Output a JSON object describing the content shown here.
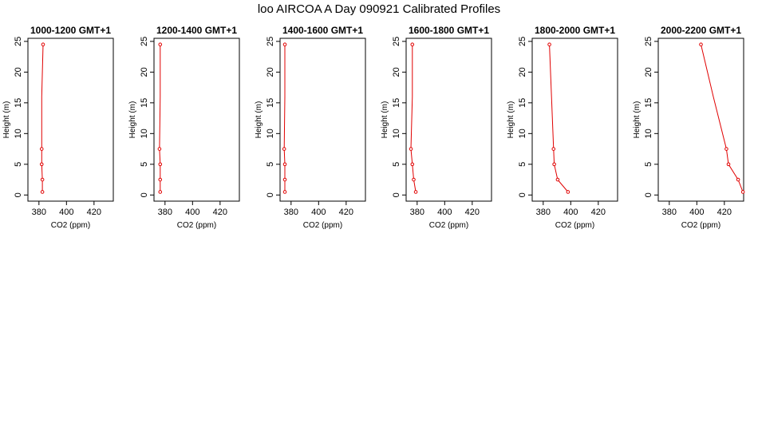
{
  "title": "loo AIRCOA A  Day 090921  Calibrated Profiles",
  "chart_data": [
    {
      "type": "line",
      "title": "1000-1200 GMT+1",
      "xlabel": "CO2 (ppm)",
      "ylabel": "Height (m)",
      "xlim": [
        372,
        434
      ],
      "ylim": [
        -1,
        25.5
      ],
      "xticks": [
        380,
        400,
        420
      ],
      "yticks": [
        0,
        5,
        10,
        15,
        20,
        25
      ],
      "line_color": "#e00000",
      "series": [
        {
          "x": [
            382.5,
            382.5,
            382,
            382,
            382,
            383
          ],
          "y": [
            0.5,
            2.5,
            5,
            7.5,
            16,
            24.5
          ]
        }
      ]
    },
    {
      "type": "line",
      "title": "1200-1400 GMT+1",
      "xlabel": "CO2 (ppm)",
      "ylabel": "Height (m)",
      "xlim": [
        372,
        434
      ],
      "ylim": [
        -1,
        25.5
      ],
      "xticks": [
        380,
        400,
        420
      ],
      "yticks": [
        0,
        5,
        10,
        15,
        20,
        25
      ],
      "line_color": "#e00000",
      "series": [
        {
          "x": [
            376.5,
            376.5,
            376.5,
            376,
            376.5,
            376.5
          ],
          "y": [
            0.5,
            2.5,
            5,
            7.5,
            16,
            24.5
          ]
        }
      ]
    },
    {
      "type": "line",
      "title": "1400-1600 GMT+1",
      "xlabel": "CO2 (ppm)",
      "ylabel": "Height (m)",
      "xlim": [
        372,
        434
      ],
      "ylim": [
        -1,
        25.5
      ],
      "xticks": [
        380,
        400,
        420
      ],
      "yticks": [
        0,
        5,
        10,
        15,
        20,
        25
      ],
      "line_color": "#e00000",
      "series": [
        {
          "x": [
            375.5,
            375.5,
            375.5,
            375,
            375.5,
            375.5
          ],
          "y": [
            0.5,
            2.5,
            5,
            7.5,
            16,
            24.5
          ]
        }
      ]
    },
    {
      "type": "line",
      "title": "1600-1800 GMT+1",
      "xlabel": "CO2 (ppm)",
      "ylabel": "Height (m)",
      "xlim": [
        372,
        434
      ],
      "ylim": [
        -1,
        25.5
      ],
      "xticks": [
        380,
        400,
        420
      ],
      "yticks": [
        0,
        5,
        10,
        15,
        20,
        25
      ],
      "line_color": "#e00000",
      "series": [
        {
          "x": [
            379,
            377.5,
            376.5,
            375.5,
            376.5,
            376.5
          ],
          "y": [
            0.5,
            2.5,
            5,
            7.5,
            16,
            24.5
          ]
        }
      ]
    },
    {
      "type": "line",
      "title": "1800-2000 GMT+1",
      "xlabel": "CO2 (ppm)",
      "ylabel": "Height (m)",
      "xlim": [
        372,
        434
      ],
      "ylim": [
        -1,
        25.5
      ],
      "xticks": [
        380,
        400,
        420
      ],
      "yticks": [
        0,
        5,
        10,
        15,
        20,
        25
      ],
      "line_color": "#e00000",
      "series": [
        {
          "x": [
            398,
            390.5,
            388,
            387.5,
            386,
            384.5
          ],
          "y": [
            0.5,
            2.5,
            5,
            7.5,
            16,
            24.5
          ]
        }
      ]
    },
    {
      "type": "line",
      "title": "2000-2200 GMT+1",
      "xlabel": "CO2 (ppm)",
      "ylabel": "Height (m)",
      "xlim": [
        372,
        434
      ],
      "ylim": [
        -1,
        25.5
      ],
      "xticks": [
        380,
        400,
        420
      ],
      "yticks": [
        0,
        5,
        10,
        15,
        20,
        25
      ],
      "line_color": "#e00000",
      "series": [
        {
          "x": [
            433.5,
            430,
            423,
            421.5,
            412,
            403
          ],
          "y": [
            0.5,
            2.5,
            5,
            7.5,
            16,
            24.5
          ]
        }
      ]
    }
  ]
}
